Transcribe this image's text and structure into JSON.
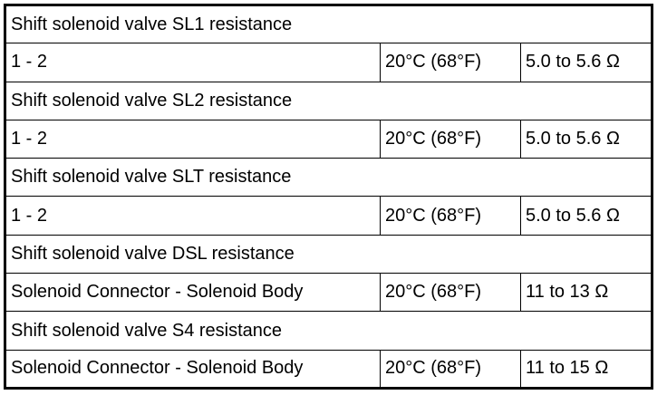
{
  "sections": [
    {
      "title": "Shift solenoid valve SL1 resistance",
      "rows": [
        [
          "1 - 2",
          "20°C (68°F)",
          "5.0 to 5.6 Ω"
        ]
      ]
    },
    {
      "title": "Shift solenoid valve SL2 resistance",
      "rows": [
        [
          "1 - 2",
          "20°C (68°F)",
          "5.0 to 5.6 Ω"
        ]
      ]
    },
    {
      "title": "Shift solenoid valve SLT resistance",
      "rows": [
        [
          "1 - 2",
          "20°C (68°F)",
          "5.0 to 5.6 Ω"
        ]
      ]
    },
    {
      "title": "Shift solenoid valve DSL resistance",
      "rows": [
        [
          "Solenoid Connector - Solenoid Body",
          "20°C (68°F)",
          "11 to 13 Ω"
        ]
      ]
    },
    {
      "title": "Shift solenoid valve S4 resistance",
      "rows": [
        [
          "Solenoid Connector - Solenoid Body",
          "20°C (68°F)",
          "11 to 15 Ω"
        ]
      ]
    }
  ]
}
